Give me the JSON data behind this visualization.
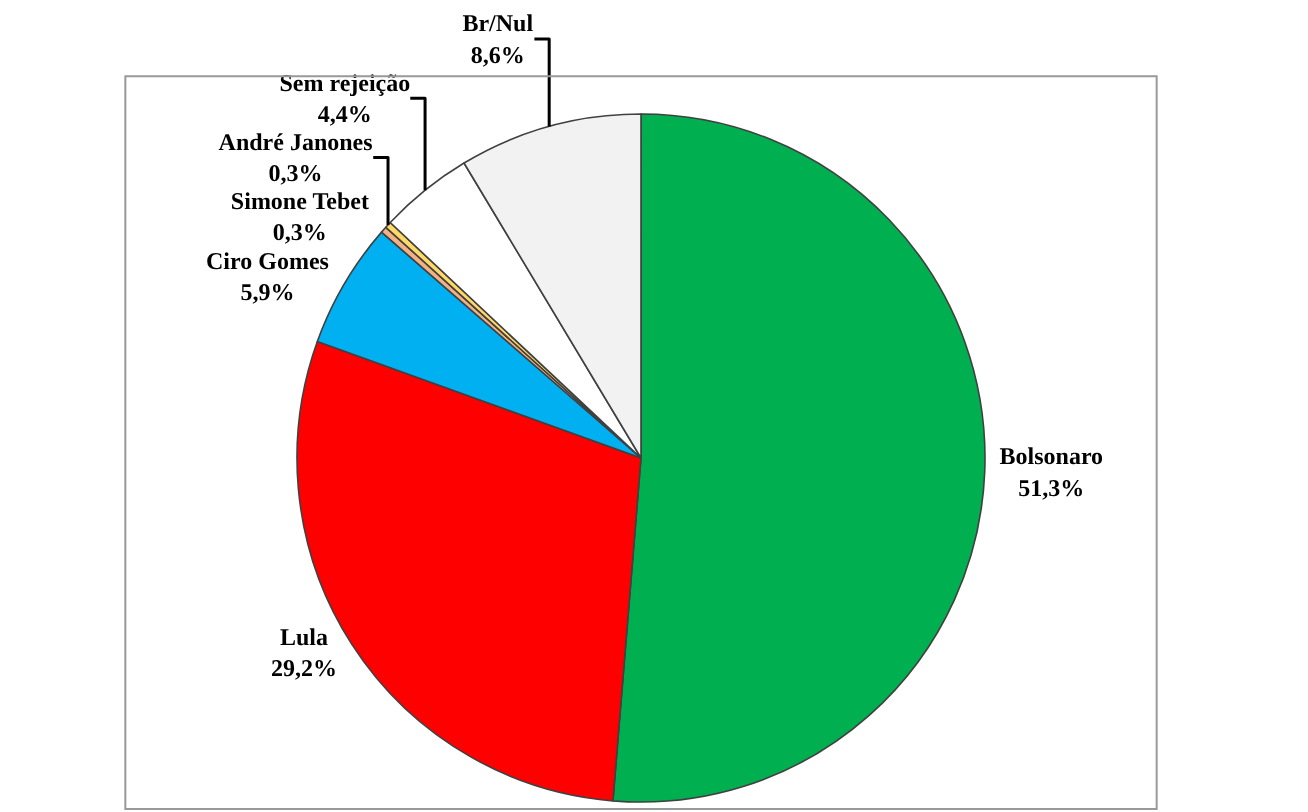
{
  "chart_data": {
    "type": "pie",
    "categories": [
      "Bolsonaro",
      "Lula",
      "Ciro Gomes",
      "Simone Tebet",
      "André Janones",
      "Sem rejeição",
      "Br/Nul"
    ],
    "values": [
      51.3,
      29.2,
      5.9,
      0.3,
      0.3,
      4.4,
      8.6
    ],
    "value_labels": [
      "51,3%",
      "29,2%",
      "5,9%",
      "0,3%",
      "0,3%",
      "4,4%",
      "8,6%"
    ],
    "colors": [
      "#00b050",
      "#ff0000",
      "#00b0f0",
      "#f4b183",
      "#ffd966",
      "#ffffff",
      "#f2f2f2"
    ],
    "legend": false
  }
}
